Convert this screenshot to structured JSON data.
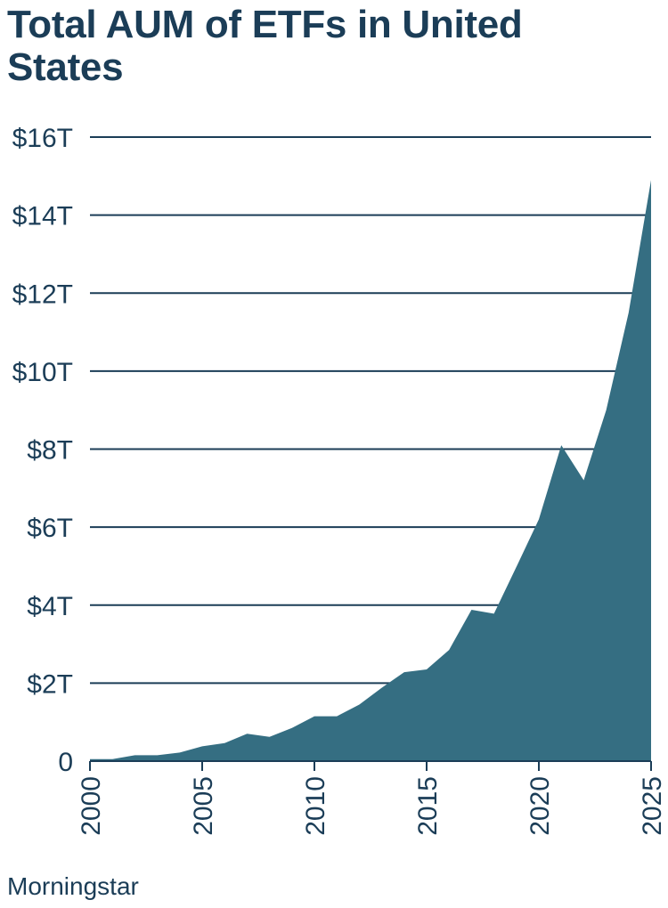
{
  "title": "Total AUM of ETFs in United States",
  "source": "Morningstar",
  "colors": {
    "area": "#356e82",
    "text": "#1b3d57",
    "grid": "#1b3d57"
  },
  "chart_data": {
    "type": "area",
    "title": "Total AUM of ETFs in United States",
    "xlabel": "",
    "ylabel": "",
    "x": [
      2000,
      2001,
      2002,
      2003,
      2004,
      2005,
      2006,
      2007,
      2008,
      2009,
      2010,
      2011,
      2012,
      2013,
      2014,
      2015,
      2016,
      2017,
      2018,
      2019,
      2020,
      2021,
      2022,
      2023,
      2024,
      2025
    ],
    "values": [
      0.05,
      0.05,
      0.15,
      0.15,
      0.22,
      0.38,
      0.46,
      0.7,
      0.62,
      0.85,
      1.15,
      1.15,
      1.45,
      1.88,
      2.28,
      2.35,
      2.85,
      3.88,
      3.78,
      4.98,
      6.2,
      8.1,
      7.2,
      9.0,
      11.5,
      14.9
    ],
    "ylim": [
      0,
      16
    ],
    "xlim": [
      2000,
      2025
    ],
    "yticks": [
      0,
      2,
      4,
      6,
      8,
      10,
      12,
      14,
      16
    ],
    "ytick_labels": [
      "0",
      "$2T",
      "$4T",
      "$6T",
      "$8T",
      "$10T",
      "$12T",
      "$14T",
      "$16T"
    ],
    "xticks": [
      2000,
      2005,
      2010,
      2015,
      2020,
      2025
    ],
    "xtick_labels": [
      "2000",
      "2005",
      "2010",
      "2015",
      "2020",
      "2025"
    ],
    "grid": true,
    "legend": "none"
  }
}
